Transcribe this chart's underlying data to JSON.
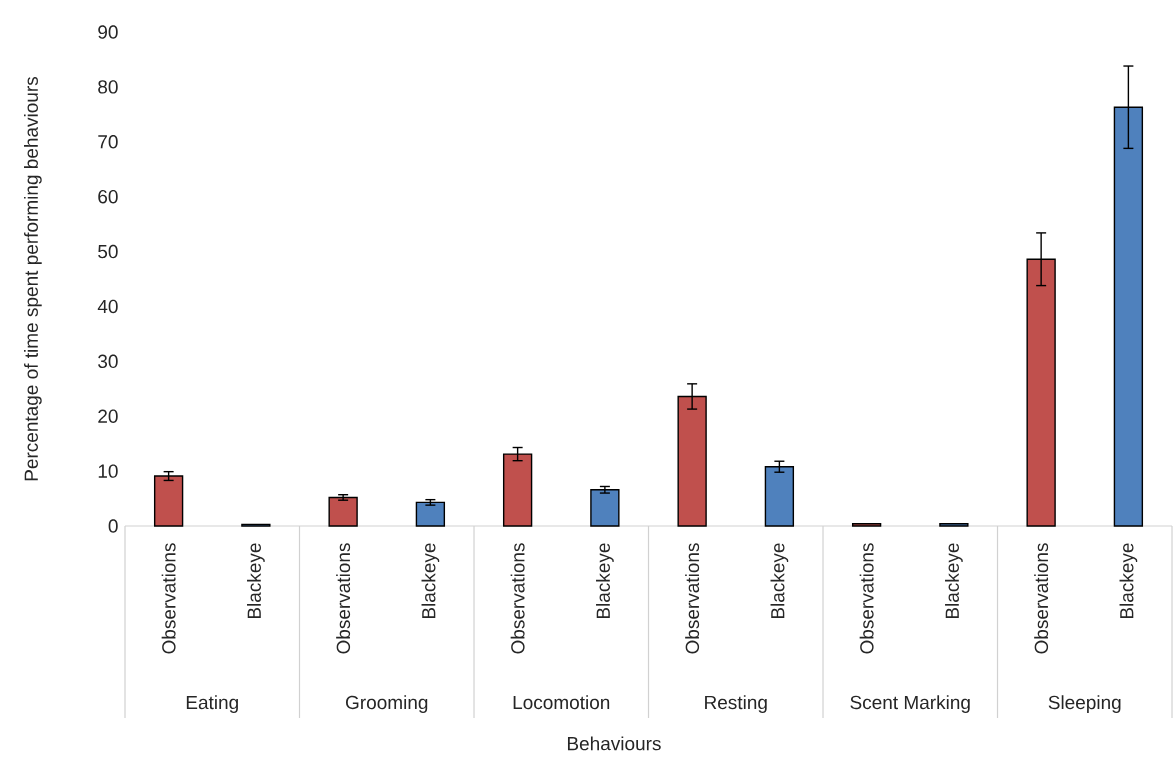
{
  "chart_data": {
    "type": "bar",
    "xlabel": "Behaviours",
    "ylabel": "Percentage of time spent performing behaviours",
    "categories": [
      "Observations",
      "Blackeye",
      "Observations",
      "Blackeye",
      "Observations",
      "Blackeye",
      "Observations",
      "Blackeye",
      "Observations",
      "Blackeye",
      "Observations",
      "Blackeye"
    ],
    "values": [
      9.1,
      0.3,
      5.2,
      4.3,
      13.1,
      6.6,
      23.6,
      10.8,
      0.4,
      0.4,
      48.6,
      76.3
    ],
    "errors": [
      0.8,
      null,
      0.5,
      0.5,
      1.2,
      0.6,
      2.3,
      1.0,
      null,
      null,
      4.8,
      7.5
    ],
    "colors": [
      "#c0504d",
      "#4f81bd",
      "#c0504d",
      "#4f81bd",
      "#c0504d",
      "#4f81bd",
      "#c0504d",
      "#4f81bd",
      "#c0504d",
      "#4f81bd",
      "#c0504d",
      "#4f81bd"
    ],
    "annotations": [
      "Eating",
      "Grooming",
      "Locomotion",
      "Resting",
      "Scent Marking",
      "Sleeping"
    ],
    "ylim": [
      0,
      90
    ],
    "yticks": [
      0,
      10,
      20,
      30,
      40,
      50,
      60,
      70,
      80,
      90
    ],
    "grid": false
  }
}
